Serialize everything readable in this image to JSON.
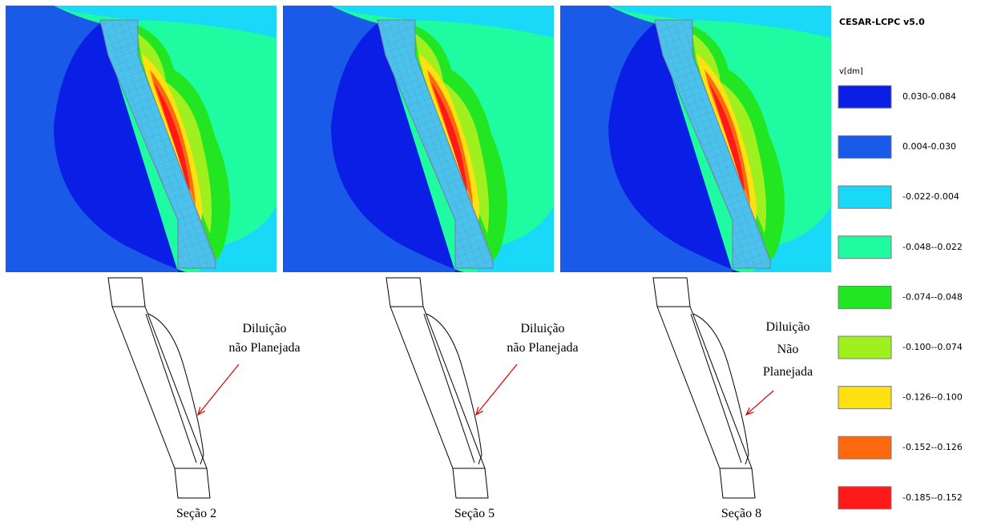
{
  "header": {
    "software": "CESAR-LCPC v5.0",
    "variable": "v[dm]"
  },
  "legend": [
    {
      "range": "0.030-0.084",
      "color": "#0a1ee6"
    },
    {
      "range": "0.004-0.030",
      "color": "#1a5ae8"
    },
    {
      "range": "-0.022-0.004",
      "color": "#1ad8f8"
    },
    {
      "range": "-0.048--0.022",
      "color": "#1efba0"
    },
    {
      "range": "-0.074--0.048",
      "color": "#22e622"
    },
    {
      "range": "-0.100--0.074",
      "color": "#a0f020"
    },
    {
      "range": "-0.126--0.100",
      "color": "#ffe010"
    },
    {
      "range": "-0.152--0.126",
      "color": "#ff6a10"
    },
    {
      "range": "-0.185--0.152",
      "color": "#ff1a1a"
    }
  ],
  "panels": [
    {
      "section": "Seção 2",
      "annotation": [
        "Diluição",
        "não Planejada"
      ]
    },
    {
      "section": "Seção 5",
      "annotation": [
        "Diluição",
        "não Planejada"
      ]
    },
    {
      "section": "Seção 8",
      "annotation": [
        "Diluição",
        "Não",
        "Planejada"
      ]
    }
  ]
}
